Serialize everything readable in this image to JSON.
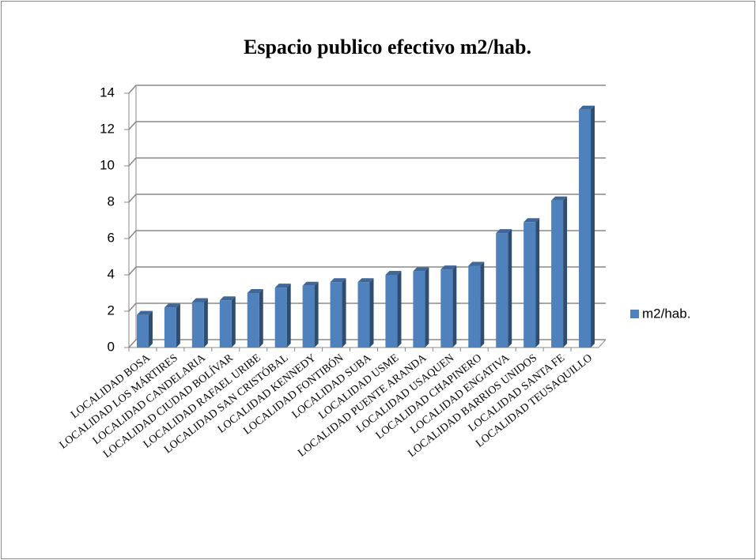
{
  "chart_data": {
    "type": "bar",
    "title": "Espacio publico efectivo m2/hab.",
    "categories": [
      "LOCALIDAD BOSA",
      "LOCALIDAD LOS MÁRTIRES",
      "LOCALIDAD CANDELARIA",
      "LOCALIDAD CIUDAD BOLÍVAR",
      "LOCALIDAD RAFAEL URIBE",
      "LOCALIDAD SAN CRISTÓBAL",
      "LOCALIDAD KENNEDY",
      "LOCALIDAD FONTIBÓN",
      "LOCALIDAD SUBA",
      "LOCALIDAD USME",
      "LOCALIDAD PUENTE ARANDA",
      "LOCALIDAD USAQUEN",
      "LOCALIDAD CHAPINERO",
      "LOCALIDAD ENGATIVA",
      "LOCALIDAD BARRIOS UNIDOS",
      "LOCALIDAD SANTA FE",
      "LOCALIDAD TEUSAQUILLO"
    ],
    "series": [
      {
        "name": "m2/hab.",
        "color": "#4f81bd",
        "values": [
          1.8,
          2.2,
          2.5,
          2.6,
          3.0,
          3.3,
          3.4,
          3.6,
          3.6,
          4.0,
          4.2,
          4.3,
          4.5,
          6.3,
          6.9,
          8.1,
          13.1
        ]
      }
    ],
    "ylim": [
      0,
      14
    ],
    "yticks": [
      0,
      2,
      4,
      6,
      8,
      10,
      12,
      14
    ],
    "grid": true,
    "legend": "right"
  }
}
